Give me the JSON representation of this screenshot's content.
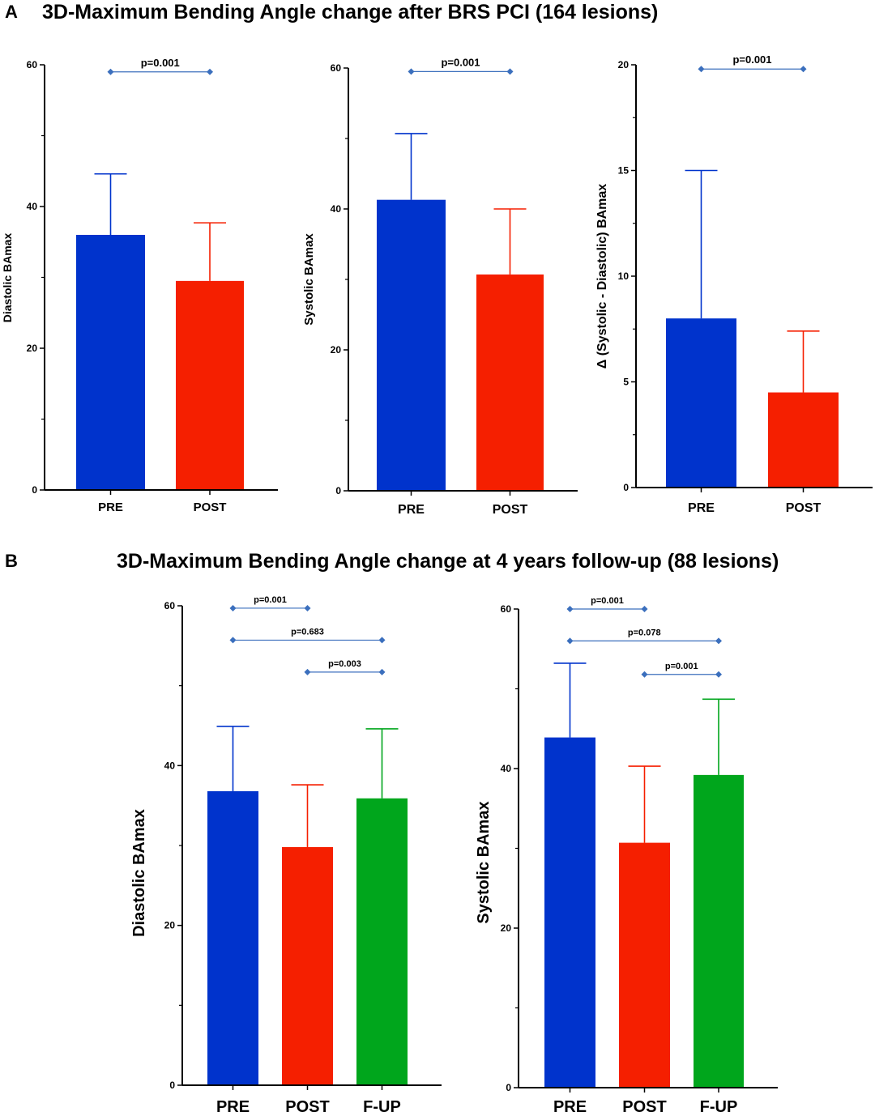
{
  "panel_a": {
    "letter": "A",
    "title": "3D-Maximum Bending Angle change after BRS PCI (164 lesions)"
  },
  "panel_b": {
    "letter": "B",
    "title": "3D-Maximum Bending Angle change at 4 years follow-up (88 lesions)"
  },
  "colors": {
    "pre": "#0033cc",
    "post": "#f51f00",
    "fup": "#00a61c",
    "comparison": "#3b6fbd"
  },
  "chart_data": [
    {
      "type": "bar",
      "categories": [
        "PRE",
        "POST"
      ],
      "values": [
        36,
        29.5
      ],
      "error_upper": [
        44.6,
        37.7
      ],
      "ylabel": "Diastolic BAmax",
      "ylim": [
        0,
        60
      ],
      "yticks": [
        0,
        20,
        40,
        60
      ],
      "comparisons": [
        {
          "from": 0,
          "to": 1,
          "label": "p=0.001",
          "y": 59
        }
      ]
    },
    {
      "type": "bar",
      "categories": [
        "PRE",
        "POST"
      ],
      "values": [
        41.3,
        30.7
      ],
      "error_upper": [
        50.7,
        40
      ],
      "ylabel": "Systolic BAmax",
      "ylim": [
        0,
        60
      ],
      "yticks": [
        0,
        20,
        40,
        60
      ],
      "comparisons": [
        {
          "from": 0,
          "to": 1,
          "label": "p=0.001",
          "y": 59.5
        }
      ]
    },
    {
      "type": "bar",
      "categories": [
        "PRE",
        "POST"
      ],
      "values": [
        8,
        4.5
      ],
      "error_upper": [
        15,
        7.4
      ],
      "ylabel": "Δ (Systolic - Diastolic) BAmax",
      "ylim": [
        0,
        20
      ],
      "yticks": [
        0,
        5,
        10,
        15,
        20
      ],
      "comparisons": [
        {
          "from": 0,
          "to": 1,
          "label": "p=0.001",
          "y": 19.8
        }
      ]
    },
    {
      "type": "bar",
      "categories": [
        "PRE",
        "POST",
        "F-UP"
      ],
      "values": [
        36.8,
        29.8,
        35.9
      ],
      "error_upper": [
        44.9,
        37.6,
        44.6
      ],
      "ylabel": "Diastolic BAmax",
      "ylim": [
        0,
        60
      ],
      "yticks": [
        0,
        20,
        40,
        60
      ],
      "comparisons": [
        {
          "from": 0,
          "to": 1,
          "label": "p=0.001",
          "y": 59.7
        },
        {
          "from": 0,
          "to": 2,
          "label": "p=0.683",
          "y": 55.7
        },
        {
          "from": 1,
          "to": 2,
          "label": "p=0.003",
          "y": 51.7
        }
      ]
    },
    {
      "type": "bar",
      "categories": [
        "PRE",
        "POST",
        "F-UP"
      ],
      "values": [
        43.9,
        30.7,
        39.2
      ],
      "error_upper": [
        53.2,
        40.3,
        48.7
      ],
      "ylabel": "Systolic BAmax",
      "ylim": [
        0,
        60
      ],
      "yticks": [
        0,
        20,
        40,
        60
      ],
      "comparisons": [
        {
          "from": 0,
          "to": 1,
          "label": "p=0.001",
          "y": 60
        },
        {
          "from": 0,
          "to": 2,
          "label": "p=0.078",
          "y": 56
        },
        {
          "from": 1,
          "to": 2,
          "label": "p=0.001",
          "y": 51.8
        }
      ]
    }
  ]
}
